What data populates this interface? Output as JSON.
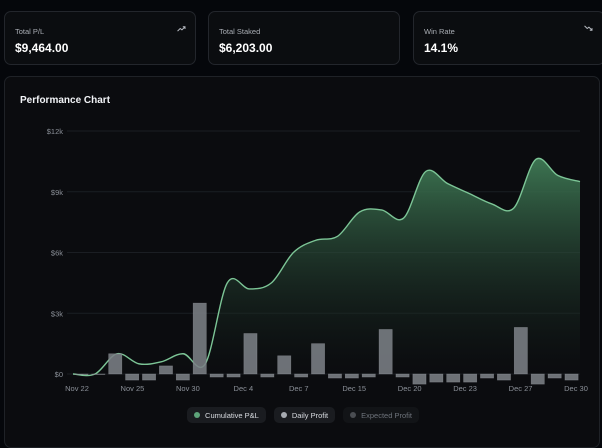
{
  "stats": [
    {
      "label": "Total P/L",
      "value": "$9,464.00",
      "icon": "trend-up-icon"
    },
    {
      "label": "Total Staked",
      "value": "$6,203.00",
      "icon": ""
    },
    {
      "label": "Win Rate",
      "value": "14.1%",
      "icon": "trend-down-icon"
    }
  ],
  "chart": {
    "title": "Performance Chart"
  },
  "legend": [
    {
      "label": "Cumulative P&L",
      "color": "#5ea47a",
      "active": true
    },
    {
      "label": "Daily Profit",
      "color": "#a7abb1",
      "active": true
    },
    {
      "label": "Expected Profit",
      "color": "#4a4d52",
      "active": false
    }
  ],
  "chart_data": {
    "type": "area",
    "title": "Performance Chart",
    "xlabel": "",
    "ylabel": "",
    "ylim": [
      0,
      12000
    ],
    "y_ticks": [
      "$0",
      "$3k",
      "$6k",
      "$9k",
      "$12k"
    ],
    "y_tick_values": [
      0,
      3000,
      6000,
      9000,
      12000
    ],
    "x_tick_labels": [
      "Nov 22",
      "Nov 25",
      "Nov 30",
      "Dec 4",
      "Dec 7",
      "Dec 15",
      "Dec 20",
      "Dec 23",
      "Dec 27",
      "Dec 30"
    ],
    "grid": "horizontal",
    "series": [
      {
        "name": "Cumulative P&L",
        "type": "area",
        "color": "#5ea47a",
        "values": [
          0,
          0,
          1000,
          500,
          600,
          1000,
          500,
          4500,
          4200,
          4500,
          6000,
          6600,
          6800,
          8000,
          8100,
          7700,
          10000,
          9400,
          8900,
          8400,
          8200,
          10600,
          9800,
          9500
        ]
      },
      {
        "name": "Daily Profit",
        "type": "bar",
        "color": "#8a8e94",
        "values": [
          0,
          0,
          1000,
          -300,
          -300,
          400,
          -300,
          3500,
          -150,
          -150,
          2000,
          -150,
          900,
          -150,
          1500,
          -200,
          -200,
          -150,
          2200,
          -150,
          -500,
          -400,
          -400,
          -400,
          -200,
          -300,
          2300,
          -500,
          -200,
          -300
        ]
      }
    ]
  }
}
